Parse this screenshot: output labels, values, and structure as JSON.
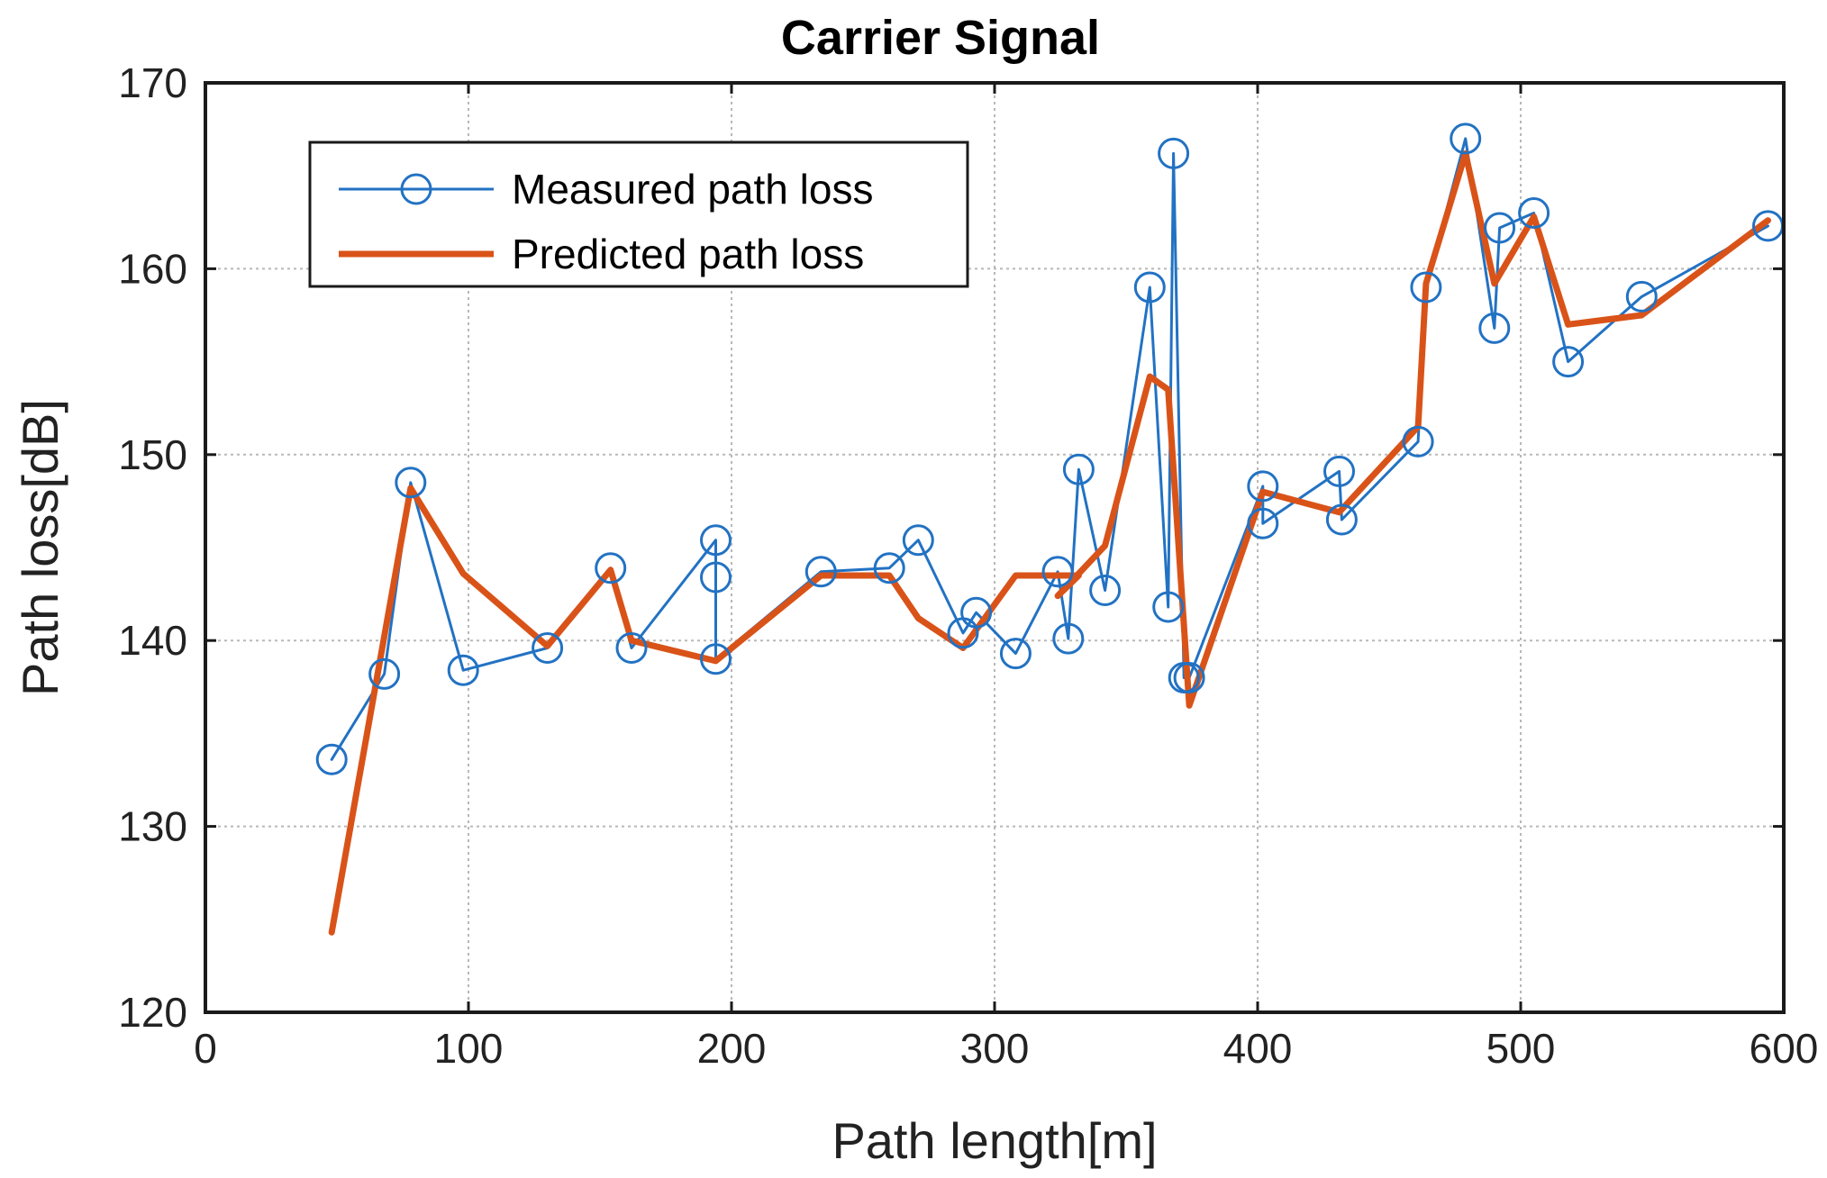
{
  "chart_data": {
    "type": "line",
    "title": "Carrier Signal",
    "xlabel": "Path length[m]",
    "ylabel": "Path loss[dB]",
    "xlim": [
      0,
      600
    ],
    "ylim": [
      120,
      170
    ],
    "xticks": [
      0,
      100,
      200,
      300,
      400,
      500,
      600
    ],
    "yticks": [
      120,
      130,
      140,
      150,
      160,
      170
    ],
    "grid": true,
    "legend_position": "top-left",
    "series": [
      {
        "name": "Measured path loss",
        "color": "#2272c3",
        "marker": "circle",
        "points": [
          [
            48,
            133.6
          ],
          [
            68,
            138.2
          ],
          [
            78,
            148.5
          ],
          [
            98,
            138.4
          ],
          [
            130,
            139.6
          ],
          [
            154,
            143.9
          ],
          [
            162,
            139.6
          ],
          [
            194,
            145.4
          ],
          [
            194,
            143.4
          ],
          [
            194,
            139.0
          ],
          [
            234,
            143.7
          ],
          [
            260,
            143.9
          ],
          [
            271,
            145.4
          ],
          [
            288,
            140.4
          ],
          [
            293,
            141.5
          ],
          [
            308,
            139.3
          ],
          [
            324,
            143.7
          ],
          [
            328,
            140.1
          ],
          [
            332,
            149.2
          ],
          [
            342,
            142.7
          ],
          [
            359,
            159.0
          ],
          [
            366,
            141.8
          ],
          [
            368,
            166.2
          ],
          [
            372,
            138.0
          ],
          [
            374,
            138.0
          ],
          [
            402,
            148.3
          ],
          [
            402,
            146.3
          ],
          [
            431,
            149.1
          ],
          [
            432,
            146.5
          ],
          [
            461,
            150.7
          ],
          [
            464,
            159.0
          ],
          [
            479,
            167.0
          ],
          [
            490,
            156.8
          ],
          [
            492,
            162.2
          ],
          [
            505,
            163.0
          ],
          [
            518,
            155.0
          ],
          [
            546,
            158.5
          ],
          [
            594,
            162.3
          ]
        ]
      },
      {
        "name": "Predicted path loss",
        "color": "#d95319",
        "marker": "none",
        "points": [
          [
            48,
            124.3
          ],
          [
            78,
            148.2
          ],
          [
            98,
            143.6
          ],
          [
            130,
            139.7
          ],
          [
            154,
            143.8
          ],
          [
            162,
            140.0
          ],
          [
            194,
            138.9
          ],
          [
            234,
            143.5
          ],
          [
            260,
            143.5
          ],
          [
            271,
            141.2
          ],
          [
            288,
            139.6
          ],
          [
            308,
            143.5
          ],
          [
            324,
            143.5
          ],
          [
            332,
            143.5
          ],
          [
            324,
            142.4
          ],
          [
            342,
            145.1
          ],
          [
            359,
            154.2
          ],
          [
            366,
            153.5
          ],
          [
            374,
            136.5
          ],
          [
            402,
            148.0
          ],
          [
            431,
            146.9
          ],
          [
            461,
            151.5
          ],
          [
            464,
            159.2
          ],
          [
            479,
            166.2
          ],
          [
            490,
            159.2
          ],
          [
            505,
            162.8
          ],
          [
            518,
            157.0
          ],
          [
            546,
            157.5
          ],
          [
            594,
            162.6
          ]
        ]
      }
    ]
  }
}
